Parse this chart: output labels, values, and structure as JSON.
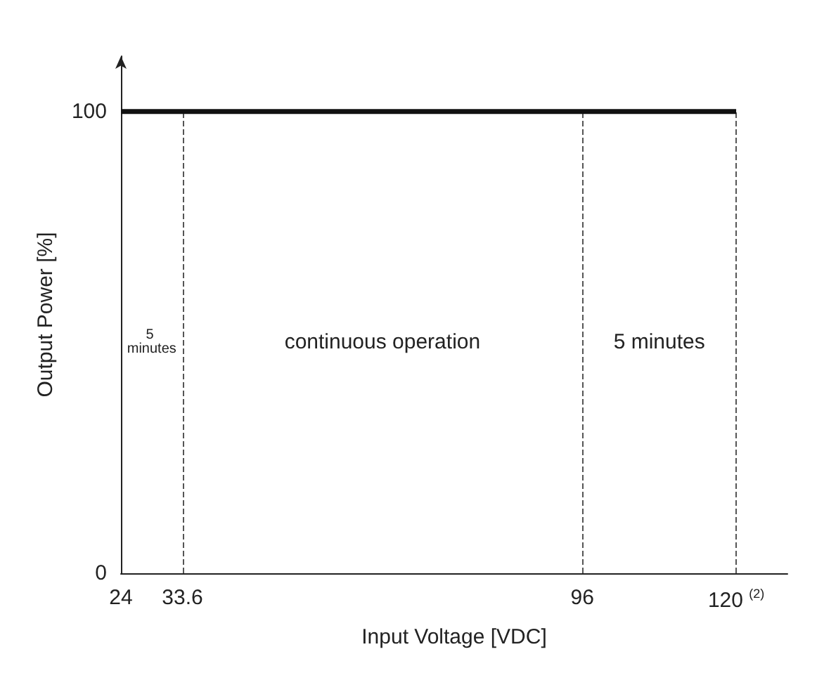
{
  "chart_data": {
    "type": "line",
    "xlabel": "Input Voltage [VDC]",
    "ylabel": "Output Power [%]",
    "x": [
      24,
      120
    ],
    "values": [
      100,
      100
    ],
    "color": "#111111",
    "marker": "none",
    "grid": false,
    "xlim": [
      24,
      128
    ],
    "ylim": [
      0,
      112
    ],
    "xticks": [
      24,
      33.6,
      96,
      {
        "value": 120,
        "label": "120 $^{(2)}$"
      }
    ],
    "yticks": [
      0,
      100
    ],
    "ref_lines": [
      {
        "axis": "x",
        "value": 33.6,
        "label": null,
        "color": "#555555",
        "line_style": "dashed"
      },
      {
        "axis": "x",
        "value": 96,
        "label": null,
        "color": "#555555",
        "line_style": "dashed"
      },
      {
        "axis": "x",
        "value": 120,
        "label": null,
        "color": "#555555",
        "line_style": "dashed"
      }
    ],
    "annotations": [
      "5 minutes",
      "continuous operation",
      "5 minutes"
    ]
  }
}
